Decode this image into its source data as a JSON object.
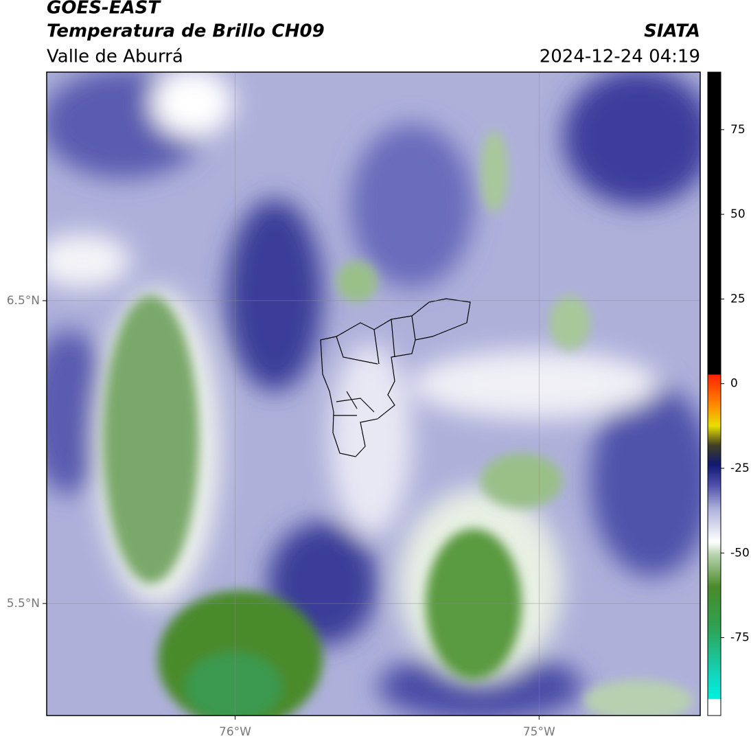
{
  "header": {
    "satellite": "GOES-EAST",
    "product": "Temperatura de Brillo CH09",
    "source": "SIATA",
    "region": "Valle de Aburrá",
    "datetime": "2024-12-24 04:19"
  },
  "map": {
    "xlim": [
      -76.62,
      -74.47
    ],
    "ylim": [
      5.13,
      7.255
    ],
    "xticks": [
      {
        "value": -76,
        "label": "76°W"
      },
      {
        "value": -75,
        "label": "75°W"
      }
    ],
    "yticks": [
      {
        "value": 6.5,
        "label": "6.5°N"
      },
      {
        "value": 5.5,
        "label": "5.5°N"
      }
    ]
  },
  "colorbar": {
    "range": [
      -98,
      92
    ],
    "ticks": [
      75,
      50,
      25,
      0,
      -25,
      -50,
      -75
    ]
  }
}
